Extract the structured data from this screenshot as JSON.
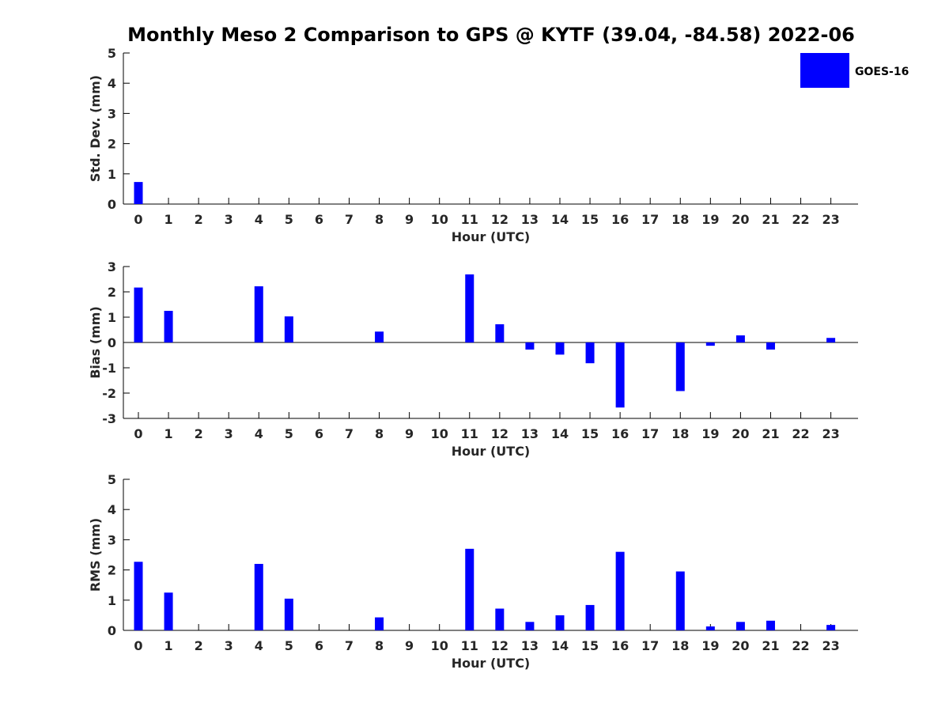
{
  "title": "Monthly Meso 2 Comparison to GPS @ KYTF (39.04, -84.58) 2022-06",
  "legend": {
    "label": "GOES-16",
    "color": "#0000ff"
  },
  "chart_data": [
    {
      "type": "bar",
      "name": "std-dev",
      "ylabel": "Std. Dev. (mm)",
      "xlabel": "Hour (UTC)",
      "categories": [
        "0",
        "1",
        "2",
        "3",
        "4",
        "5",
        "6",
        "7",
        "8",
        "9",
        "10",
        "11",
        "12",
        "13",
        "14",
        "15",
        "16",
        "17",
        "18",
        "19",
        "20",
        "21",
        "22",
        "23"
      ],
      "values": [
        0.73,
        null,
        null,
        null,
        null,
        null,
        null,
        null,
        null,
        null,
        null,
        null,
        null,
        null,
        null,
        null,
        null,
        null,
        null,
        null,
        null,
        null,
        null,
        null
      ],
      "ylim": [
        0,
        5
      ],
      "yticks": [
        0,
        1,
        2,
        3,
        4,
        5
      ],
      "color": "#0000ff"
    },
    {
      "type": "bar",
      "name": "bias",
      "ylabel": "Bias (mm)",
      "xlabel": "Hour (UTC)",
      "categories": [
        "0",
        "1",
        "2",
        "3",
        "4",
        "5",
        "6",
        "7",
        "8",
        "9",
        "10",
        "11",
        "12",
        "13",
        "14",
        "15",
        "16",
        "17",
        "18",
        "19",
        "20",
        "21",
        "22",
        "23"
      ],
      "values": [
        2.17,
        1.25,
        null,
        null,
        2.22,
        1.03,
        null,
        null,
        0.43,
        null,
        null,
        2.69,
        0.72,
        -0.28,
        -0.48,
        -0.82,
        -2.57,
        null,
        -1.92,
        -0.13,
        0.28,
        -0.28,
        null,
        0.18
      ],
      "ylim": [
        -3,
        3
      ],
      "yticks": [
        -3,
        -2,
        -1,
        0,
        1,
        2,
        3
      ],
      "zero_line": true,
      "color": "#0000ff"
    },
    {
      "type": "bar",
      "name": "rms",
      "ylabel": "RMS (mm)",
      "xlabel": "Hour (UTC)",
      "categories": [
        "0",
        "1",
        "2",
        "3",
        "4",
        "5",
        "6",
        "7",
        "8",
        "9",
        "10",
        "11",
        "12",
        "13",
        "14",
        "15",
        "16",
        "17",
        "18",
        "19",
        "20",
        "21",
        "22",
        "23"
      ],
      "values": [
        2.27,
        1.25,
        null,
        null,
        2.2,
        1.05,
        null,
        null,
        0.43,
        null,
        null,
        2.7,
        0.72,
        0.28,
        0.5,
        0.84,
        2.6,
        null,
        1.95,
        0.13,
        0.28,
        0.32,
        null,
        0.18
      ],
      "ylim": [
        0,
        5
      ],
      "yticks": [
        0,
        1,
        2,
        3,
        4,
        5
      ],
      "color": "#0000ff"
    }
  ]
}
